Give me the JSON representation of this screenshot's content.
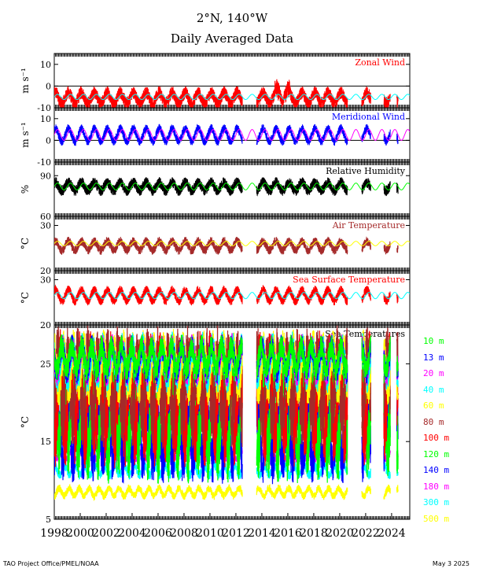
{
  "title_line1": "2°N, 140°W",
  "title_line2": "Daily Averaged Data",
  "footer_left": "TAO Project Office/PMEL/NOAA",
  "footer_right": "May  3 2025",
  "chart_data": [
    {
      "type": "line",
      "title": "Zonal Wind",
      "title_color": "#ff0000",
      "ylabel": "m s⁻¹",
      "yticks": [
        -10,
        0,
        10
      ],
      "ylim": [
        -10,
        15
      ],
      "zero_line": true,
      "series": [
        {
          "color": "#ff0000",
          "kind": "data",
          "mean": -5.5,
          "amp": 2.5,
          "noise": 3.0,
          "note_spikes": true
        },
        {
          "color": "#00ffff",
          "kind": "climatology",
          "mean": -5.0,
          "amp": 1.2
        }
      ]
    },
    {
      "type": "line",
      "title": "Meridional Wind",
      "title_color": "#0000ff",
      "ylabel": "m s⁻¹",
      "yticks": [
        -10,
        0,
        10
      ],
      "ylim": [
        -10,
        15
      ],
      "zero_line": true,
      "series": [
        {
          "color": "#0000ff",
          "kind": "data",
          "mean": 2.5,
          "amp": 3.0,
          "noise": 2.0
        },
        {
          "color": "#ff00ff",
          "kind": "climatology",
          "mean": 2.5,
          "amp": 2.5
        }
      ]
    },
    {
      "type": "line",
      "title": "Relative Humidity",
      "title_color": "#000000",
      "ylabel": "%",
      "yticks": [
        60,
        90
      ],
      "ylim": [
        60,
        100
      ],
      "zero_line": false,
      "series": [
        {
          "color": "#000000",
          "kind": "data",
          "mean": 82,
          "amp": 3,
          "noise": 4
        },
        {
          "color": "#00ff00",
          "kind": "climatology",
          "mean": 82,
          "amp": 2.5
        }
      ]
    },
    {
      "type": "line",
      "title": "Air Temperature",
      "title_color": "#a52a2a",
      "ylabel": "°C",
      "yticks": [
        20,
        30
      ],
      "ylim": [
        20,
        32
      ],
      "zero_line": false,
      "series": [
        {
          "color": "#a52a2a",
          "kind": "data",
          "mean": 25.5,
          "amp": 1.0,
          "noise": 1.0
        },
        {
          "color": "#ffff00",
          "kind": "climatology",
          "mean": 26.0,
          "amp": 0.5
        }
      ]
    },
    {
      "type": "line",
      "title": "Sea Surface Temperature",
      "title_color": "#ff0000",
      "ylabel": "°C",
      "yticks": [
        20,
        30
      ],
      "ylim": [
        20,
        32
      ],
      "zero_line": false,
      "series": [
        {
          "color": "#ff0000",
          "kind": "data",
          "mean": 26.5,
          "amp": 1.2,
          "noise": 1.0
        },
        {
          "color": "#00ffff",
          "kind": "climatology",
          "mean": 26.5,
          "amp": 0.7
        }
      ]
    },
    {
      "type": "line",
      "title": "Sea Temperatures",
      "title_color": "#000000",
      "ylabel": "°C",
      "yticks": [
        5,
        15,
        25
      ],
      "ylim": [
        5,
        30
      ],
      "zero_line": false,
      "xticks": [
        "1998",
        "2000",
        "2002",
        "2004",
        "2006",
        "2008",
        "2010",
        "2012",
        "2014",
        "2016",
        "2018",
        "2020",
        "2022",
        "2024"
      ],
      "xlim": [
        1998.0,
        2025.4
      ],
      "gaps": [
        [
          2012.5,
          2013.6
        ],
        [
          2020.6,
          2021.7
        ],
        [
          2022.4,
          2023.4
        ],
        [
          2023.9,
          2024.4
        ]
      ],
      "depths": [
        {
          "label": "10 m",
          "color": "#00ff00",
          "mean": 25.8,
          "spread": 1.5
        },
        {
          "label": "13 m",
          "color": "#0000ff",
          "mean": 25.6,
          "spread": 1.6
        },
        {
          "label": "20 m",
          "color": "#ff00ff",
          "mean": 25.5,
          "spread": 1.7
        },
        {
          "label": "40 m",
          "color": "#00ffff",
          "mean": 25.2,
          "spread": 2.0
        },
        {
          "label": "60 m",
          "color": "#ffff00",
          "mean": 24.5,
          "spread": 2.5
        },
        {
          "label": "80 m",
          "color": "#a52a2a",
          "mean": 22.0,
          "spread": 4.0
        },
        {
          "label": "100 m",
          "color": "#ff0000",
          "mean": 20.5,
          "spread": 4.5
        },
        {
          "label": "120 m",
          "color": "#00ff00",
          "mean": 18.5,
          "spread": 4.5
        },
        {
          "label": "140 m",
          "color": "#0000ff",
          "mean": 15.5,
          "spread": 3.0
        },
        {
          "label": "180 m",
          "color": "#ff00ff",
          "mean": 13.3,
          "spread": 0.5
        },
        {
          "label": "300 m",
          "color": "#00ffff",
          "mean": 11.3,
          "spread": 0.6
        },
        {
          "label": "500 m",
          "color": "#ffff00",
          "mean": 8.5,
          "spread": 0.5
        }
      ]
    }
  ]
}
